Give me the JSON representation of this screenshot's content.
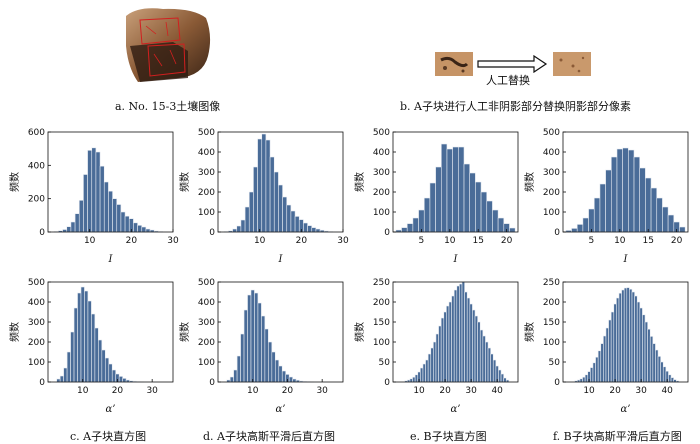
{
  "captions": {
    "a": "a.  No. 15-3土壤图像",
    "b": "b.  A子块进行人工非阴影部分替换阴影部分像素",
    "c": "c.  A子块直方图",
    "d": "d.  A子块高斯平滑后直方图",
    "e": "e.  B子块直方图",
    "f": "f.  B子块高斯平滑后直方图"
  },
  "replace_label": "人工替换",
  "colors": {
    "bar": "#4a6c98",
    "bar_edge": "#e6ebf2",
    "soil_dark": "#6b3d22",
    "soil_light": "#c99a6e",
    "red_mark": "#d21f1f"
  },
  "chart_data": [
    {
      "id": "A-I",
      "type": "bar",
      "ylabel": "频数",
      "xlabel": "I",
      "xlim": [
        0,
        30
      ],
      "xticks": [
        10,
        20,
        30
      ],
      "ylim": [
        0,
        600
      ],
      "yticks": [
        0,
        200,
        400,
        600
      ],
      "x": [
        2,
        3,
        4,
        5,
        6,
        7,
        8,
        9,
        10,
        11,
        12,
        13,
        14,
        15,
        16,
        17,
        18,
        19,
        20,
        21,
        22,
        23,
        24,
        25,
        26,
        27
      ],
      "values": [
        3,
        8,
        15,
        32,
        60,
        110,
        190,
        345,
        490,
        505,
        480,
        395,
        300,
        245,
        200,
        165,
        120,
        95,
        80,
        55,
        40,
        30,
        18,
        12,
        6,
        3
      ]
    },
    {
      "id": "A-I-smooth",
      "type": "bar",
      "ylabel": "频数",
      "xlabel": "I",
      "xlim": [
        0,
        30
      ],
      "xticks": [
        10,
        20,
        30
      ],
      "ylim": [
        0,
        500
      ],
      "yticks": [
        0,
        100,
        200,
        300,
        400,
        500
      ],
      "x": [
        2,
        3,
        4,
        5,
        6,
        7,
        8,
        9,
        10,
        11,
        12,
        13,
        14,
        15,
        16,
        17,
        18,
        19,
        20,
        21,
        22,
        23,
        24,
        25,
        26,
        27
      ],
      "values": [
        2,
        6,
        15,
        30,
        60,
        125,
        200,
        325,
        465,
        490,
        460,
        375,
        300,
        235,
        175,
        135,
        105,
        78,
        62,
        45,
        32,
        22,
        15,
        9,
        5,
        2
      ]
    },
    {
      "id": "B-I",
      "type": "bar",
      "ylabel": "频数",
      "xlabel": "I",
      "xlim": [
        0,
        22
      ],
      "xticks": [
        5,
        10,
        15,
        20
      ],
      "ylim": [
        0,
        500
      ],
      "yticks": [
        0,
        100,
        200,
        300,
        400,
        500
      ],
      "x": [
        1,
        2,
        3,
        4,
        5,
        6,
        7,
        8,
        9,
        10,
        11,
        12,
        13,
        14,
        15,
        16,
        17,
        18,
        19,
        20,
        21
      ],
      "values": [
        10,
        22,
        42,
        70,
        110,
        170,
        245,
        325,
        440,
        415,
        425,
        425,
        340,
        295,
        250,
        200,
        155,
        110,
        70,
        42,
        20
      ]
    },
    {
      "id": "B-I-smooth",
      "type": "bar",
      "ylabel": "频数",
      "xlabel": "I",
      "xlim": [
        0,
        22
      ],
      "xticks": [
        5,
        10,
        15,
        20
      ],
      "ylim": [
        0,
        500
      ],
      "yticks": [
        0,
        100,
        200,
        300,
        400,
        500
      ],
      "x": [
        1,
        2,
        3,
        4,
        5,
        6,
        7,
        8,
        9,
        10,
        11,
        12,
        13,
        14,
        15,
        16,
        17,
        18,
        19,
        20,
        21
      ],
      "values": [
        8,
        18,
        38,
        70,
        115,
        170,
        240,
        310,
        375,
        415,
        420,
        410,
        375,
        320,
        270,
        220,
        170,
        125,
        85,
        50,
        25
      ]
    },
    {
      "id": "A-alpha",
      "type": "bar",
      "ylabel": "频数",
      "xlabel": "α’",
      "xlim": [
        0,
        36
      ],
      "xticks": [
        10,
        20,
        30
      ],
      "ylim": [
        0,
        500
      ],
      "yticks": [
        0,
        100,
        200,
        300,
        400,
        500
      ],
      "x": [
        3,
        4,
        5,
        6,
        7,
        8,
        9,
        10,
        11,
        12,
        13,
        14,
        15,
        16,
        17,
        18,
        19,
        20,
        21,
        22,
        23,
        24,
        25,
        26,
        27
      ],
      "values": [
        15,
        30,
        70,
        150,
        250,
        370,
        445,
        475,
        455,
        405,
        340,
        270,
        210,
        160,
        120,
        90,
        60,
        40,
        28,
        18,
        10,
        6,
        4,
        2,
        1
      ]
    },
    {
      "id": "A-alpha-smooth",
      "type": "bar",
      "ylabel": "频数",
      "xlabel": "α’",
      "xlim": [
        0,
        36
      ],
      "xticks": [
        10,
        20,
        30
      ],
      "ylim": [
        0,
        500
      ],
      "yticks": [
        0,
        100,
        200,
        300,
        400,
        500
      ],
      "x": [
        3,
        4,
        5,
        6,
        7,
        8,
        9,
        10,
        11,
        12,
        13,
        14,
        15,
        16,
        17,
        18,
        19,
        20,
        21,
        22,
        23,
        24,
        25,
        26,
        27
      ],
      "values": [
        10,
        25,
        60,
        130,
        240,
        360,
        435,
        460,
        445,
        395,
        330,
        265,
        200,
        150,
        110,
        80,
        55,
        38,
        25,
        15,
        9,
        5,
        3,
        2,
        1
      ]
    },
    {
      "id": "B-alpha",
      "type": "bar",
      "ylabel": "频数",
      "xlabel": "α’",
      "xlim": [
        0,
        48
      ],
      "xticks": [
        10,
        20,
        30,
        40
      ],
      "ylim": [
        0,
        250
      ],
      "yticks": [
        0,
        50,
        100,
        150,
        200,
        250
      ],
      "x": [
        5,
        6,
        7,
        8,
        9,
        10,
        11,
        12,
        13,
        14,
        15,
        16,
        17,
        18,
        19,
        20,
        21,
        22,
        23,
        24,
        25,
        26,
        27,
        28,
        29,
        30,
        31,
        32,
        33,
        34,
        35,
        36,
        37,
        38,
        39,
        40,
        41,
        42,
        43,
        44
      ],
      "values": [
        3,
        5,
        8,
        12,
        18,
        25,
        35,
        45,
        55,
        70,
        85,
        100,
        120,
        140,
        160,
        175,
        190,
        200,
        215,
        230,
        240,
        245,
        250,
        225,
        210,
        195,
        180,
        165,
        150,
        130,
        115,
        100,
        85,
        70,
        55,
        40,
        30,
        20,
        10,
        5
      ]
    },
    {
      "id": "B-alpha-smooth",
      "type": "bar",
      "ylabel": "频数",
      "xlabel": "α’",
      "xlim": [
        0,
        48
      ],
      "xticks": [
        10,
        20,
        30,
        40
      ],
      "ylim": [
        0,
        250
      ],
      "yticks": [
        0,
        50,
        100,
        150,
        200,
        250
      ],
      "x": [
        5,
        6,
        7,
        8,
        9,
        10,
        11,
        12,
        13,
        14,
        15,
        16,
        17,
        18,
        19,
        20,
        21,
        22,
        23,
        24,
        25,
        26,
        27,
        28,
        29,
        30,
        31,
        32,
        33,
        34,
        35,
        36,
        37,
        38,
        39,
        40,
        41,
        42,
        43,
        44
      ],
      "values": [
        3,
        5,
        8,
        12,
        18,
        26,
        36,
        48,
        62,
        78,
        96,
        115,
        135,
        155,
        175,
        195,
        210,
        222,
        230,
        235,
        236,
        232,
        225,
        215,
        200,
        185,
        168,
        150,
        132,
        114,
        96,
        80,
        64,
        50,
        38,
        27,
        18,
        11,
        6,
        3
      ]
    }
  ]
}
